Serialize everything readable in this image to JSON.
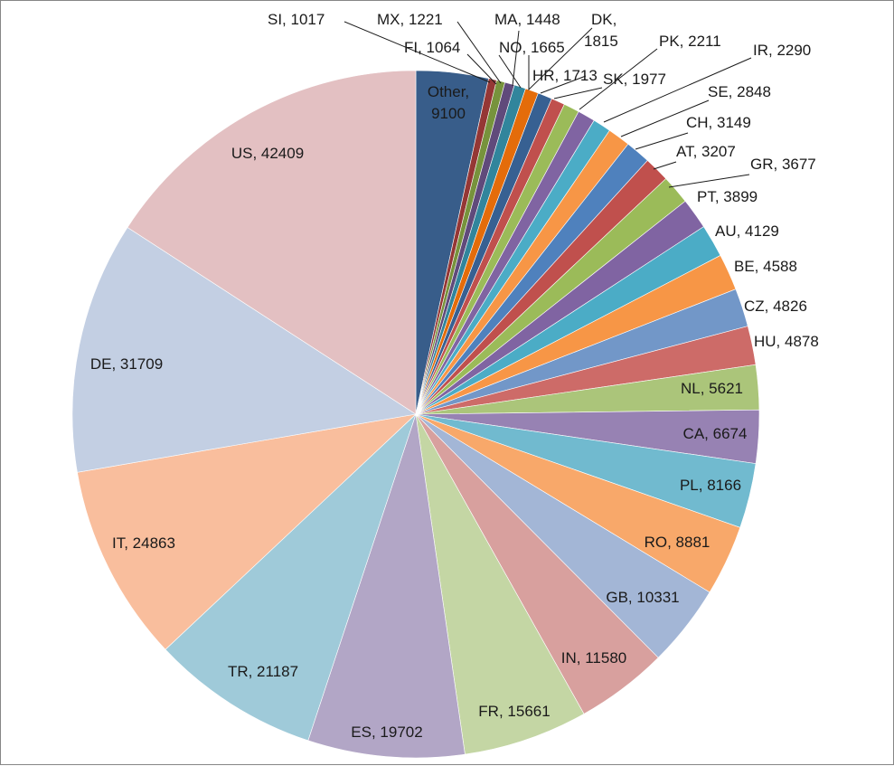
{
  "chart_data": {
    "type": "pie",
    "title": "",
    "legend": "none",
    "data_labels": "category, value",
    "slices": [
      {
        "label": "Other",
        "value": 9100,
        "color": "#385d8a",
        "text_color": "#ffffff"
      },
      {
        "label": "SI",
        "value": 1017,
        "color": "#953735"
      },
      {
        "label": "FI",
        "value": 1064,
        "color": "#77933c"
      },
      {
        "label": "MX",
        "value": 1221,
        "color": "#604a7b"
      },
      {
        "label": "MA",
        "value": 1448,
        "color": "#31859c"
      },
      {
        "label": "NO",
        "value": 1665,
        "color": "#e46c0a"
      },
      {
        "label": "DK",
        "value": 1815,
        "color": "#376092"
      },
      {
        "label": "HR",
        "value": 1713,
        "color": "#c0504d"
      },
      {
        "label": "SK",
        "value": 1977,
        "color": "#9bbb59"
      },
      {
        "label": "PK",
        "value": 2211,
        "color": "#8064a2"
      },
      {
        "label": "IR",
        "value": 2290,
        "color": "#4bacc6"
      },
      {
        "label": "SE",
        "value": 2848,
        "color": "#f79646"
      },
      {
        "label": "CH",
        "value": 3149,
        "color": "#4f81bd"
      },
      {
        "label": "AT",
        "value": 3207,
        "color": "#c0504d"
      },
      {
        "label": "GR",
        "value": 3677,
        "color": "#9bbb59"
      },
      {
        "label": "PT",
        "value": 3899,
        "color": "#8064a2"
      },
      {
        "label": "AU",
        "value": 4129,
        "color": "#4bacc6"
      },
      {
        "label": "BE",
        "value": 4588,
        "color": "#f79646"
      },
      {
        "label": "CZ",
        "value": 4826,
        "color": "#7297c8"
      },
      {
        "label": "HU",
        "value": 4878,
        "color": "#cd6b68"
      },
      {
        "label": "NL",
        "value": 5621,
        "color": "#abc57a"
      },
      {
        "label": "CA",
        "value": 6674,
        "color": "#9782b3"
      },
      {
        "label": "PL",
        "value": 8166,
        "color": "#71bacf"
      },
      {
        "label": "RO",
        "value": 8881,
        "color": "#f8a86a"
      },
      {
        "label": "GB",
        "value": 10331,
        "color": "#a3b6d6"
      },
      {
        "label": "IN",
        "value": 11580,
        "color": "#d8a09e"
      },
      {
        "label": "FR",
        "value": 15661,
        "color": "#c4d6a4"
      },
      {
        "label": "ES",
        "value": 19702,
        "color": "#b2a6c6"
      },
      {
        "label": "TR",
        "value": 21187,
        "color": "#9fcad9"
      },
      {
        "label": "IT",
        "value": 24863,
        "color": "#f9be9d"
      },
      {
        "label": "DE",
        "value": 31709,
        "color": "#c3cfe3"
      },
      {
        "label": "US",
        "value": 42409,
        "color": "#e3c0c2"
      }
    ]
  }
}
